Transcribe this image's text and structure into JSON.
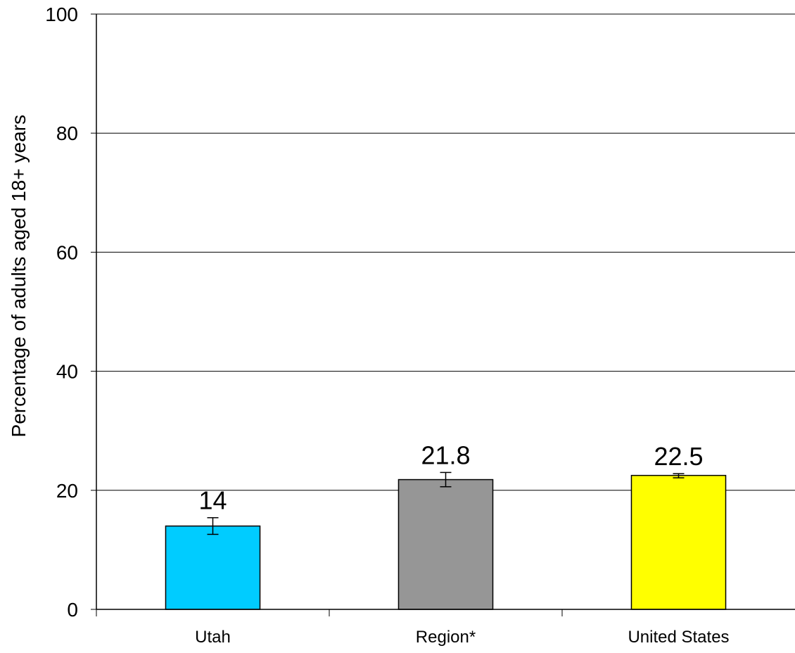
{
  "chart_data": {
    "type": "bar",
    "title": "",
    "xlabel": "",
    "ylabel": "Percentage of adults aged 18+ years",
    "ylim": [
      0,
      100
    ],
    "yticks": [
      0,
      20,
      40,
      60,
      80,
      100
    ],
    "grid": true,
    "categories": [
      "Utah",
      "Region*",
      "United States"
    ],
    "values": [
      14,
      21.8,
      22.5
    ],
    "value_labels": [
      "14",
      "21.8",
      "22.5"
    ],
    "error_bars": [
      {
        "low": 12.6,
        "high": 15.4
      },
      {
        "low": 20.6,
        "high": 23.0
      },
      {
        "low": 22.1,
        "high": 22.8
      }
    ],
    "colors": [
      "#00ccff",
      "#969696",
      "#ffff00"
    ]
  }
}
